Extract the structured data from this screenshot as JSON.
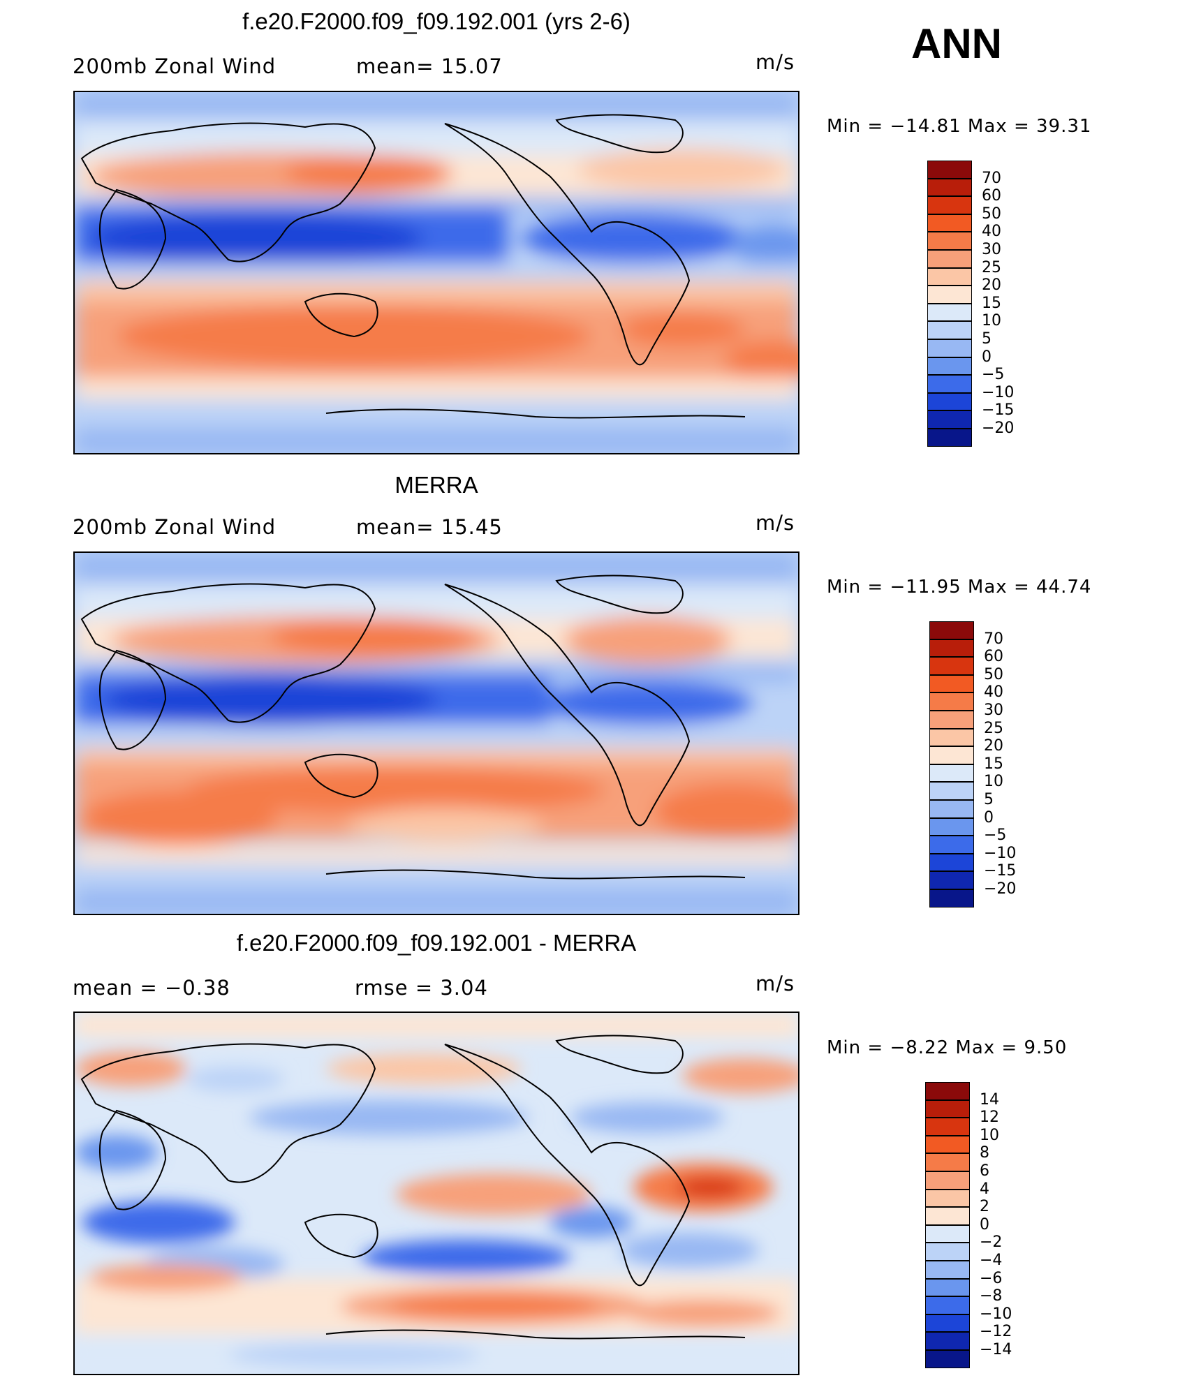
{
  "season": "ANN",
  "panels": [
    {
      "title": "f.e20.F2000.f09_f09.192.001 (yrs 2-6)",
      "sub_left": "200mb  Zonal  Wind",
      "sub_mid": "mean=   15.07",
      "units": "m/s",
      "minmax": "Min  =  −14.81  Max  =    39.31"
    },
    {
      "title": "MERRA",
      "sub_left": "200mb  Zonal  Wind",
      "sub_mid": "mean=   15.45",
      "units": "m/s",
      "minmax": "Min  =  −11.95  Max  =    44.74"
    },
    {
      "title": "f.e20.F2000.f09_f09.192.001 - MERRA",
      "sub_left": "mean  =    −0.38",
      "sub_mid": "rmse  =     3.04",
      "units": "m/s",
      "minmax": "Min  =    −8.22  Max  =     9.50"
    }
  ],
  "colorbars": [
    {
      "labels": [
        "70",
        "60",
        "50",
        "40",
        "30",
        "25",
        "20",
        "15",
        "10",
        "5",
        "0",
        "−5",
        "−10",
        "−15",
        "−20"
      ],
      "colors": [
        "#8b0a0a",
        "#b81e0a",
        "#d8350f",
        "#f25a23",
        "#f57b48",
        "#f7a07a",
        "#fbc6a6",
        "#fde6d4",
        "#dce9f9",
        "#bcd3f7",
        "#98b8f3",
        "#6a96ee",
        "#3c6bea",
        "#1c45d8",
        "#0f27b0",
        "#08168a"
      ]
    },
    {
      "labels": [
        "14",
        "12",
        "10",
        "8",
        "6",
        "4",
        "2",
        "0",
        "−2",
        "−4",
        "−6",
        "−8",
        "−10",
        "−12",
        "−14"
      ],
      "colors": [
        "#8b0a0a",
        "#b81e0a",
        "#d8350f",
        "#f25a23",
        "#f57b48",
        "#f7a07a",
        "#fbc6a6",
        "#fde6d4",
        "#dce9f9",
        "#bcd3f7",
        "#98b8f3",
        "#6a96ee",
        "#3c6bea",
        "#1c45d8",
        "#0f27b0",
        "#08168a"
      ]
    }
  ]
}
